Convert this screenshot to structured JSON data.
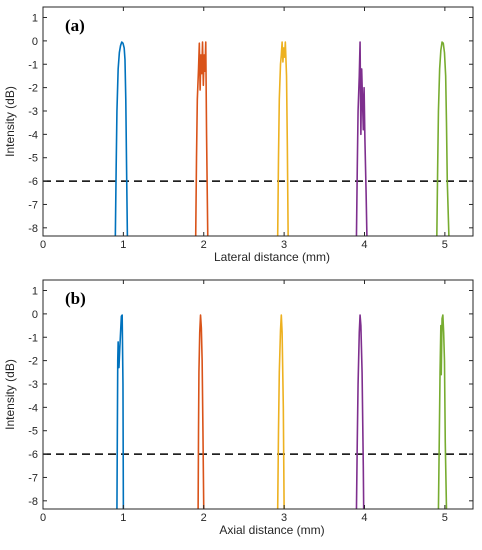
{
  "chart_data": [
    {
      "type": "line",
      "panel_label": "(a)",
      "xlabel": "Lateral distance (mm)",
      "ylabel": "Intensity (dB)",
      "xlim": [
        0,
        5.35
      ],
      "ylim": [
        -8.35,
        1.45
      ],
      "xticks": [
        0,
        1,
        2,
        3,
        4,
        5
      ],
      "yticks": [
        1,
        0,
        -1,
        -2,
        -3,
        -4,
        -5,
        -6,
        -7,
        -8
      ],
      "reference_line": {
        "y": -6,
        "style": "dashed",
        "color": "#000000"
      },
      "series": [
        {
          "color": "#0072BD",
          "x": [
            0.9,
            0.91,
            0.92,
            0.935,
            0.95,
            0.965,
            0.98,
            0.995,
            1.01,
            1.02,
            1.03,
            1.04,
            1.05
          ],
          "y": [
            -8.35,
            -5.5,
            -3.0,
            -1.2,
            -0.5,
            -0.2,
            -0.05,
            -0.1,
            -0.3,
            -0.8,
            -2.5,
            -5.5,
            -8.35
          ]
        },
        {
          "color": "#D95319",
          "x": [
            1.9,
            1.91,
            1.92,
            1.935,
            1.945,
            1.955,
            1.965,
            1.975,
            1.985,
            1.995,
            2.005,
            2.015,
            2.025,
            2.035,
            2.05
          ],
          "y": [
            -8.35,
            -5.0,
            -2.5,
            -1.2,
            -0.1,
            -2.1,
            -0.6,
            -1.4,
            -0.05,
            -1.9,
            -0.6,
            -1.3,
            -0.05,
            -4.0,
            -8.35
          ]
        },
        {
          "color": "#EDB120",
          "x": [
            2.92,
            2.93,
            2.94,
            2.955,
            2.965,
            2.975,
            2.985,
            2.995,
            3.005,
            3.015,
            3.03,
            3.04,
            3.05
          ],
          "y": [
            -8.35,
            -5.0,
            -2.5,
            -1.0,
            -0.6,
            -0.05,
            -0.9,
            -0.3,
            -0.7,
            -0.05,
            -1.5,
            -4.5,
            -8.35
          ]
        },
        {
          "color": "#7E2F8E",
          "x": [
            3.9,
            3.91,
            3.92,
            3.935,
            3.945,
            3.955,
            3.965,
            3.975,
            3.985,
            3.995,
            4.005,
            4.02,
            4.03
          ],
          "y": [
            -8.35,
            -5.5,
            -3.0,
            -1.5,
            -0.05,
            -4.0,
            -1.2,
            -2.5,
            -3.8,
            -2.0,
            -4.2,
            -6.5,
            -8.35
          ]
        },
        {
          "color": "#77AC30",
          "x": [
            4.9,
            4.91,
            4.92,
            4.935,
            4.95,
            4.965,
            4.98,
            4.995,
            5.01,
            5.02,
            5.03,
            5.05
          ],
          "y": [
            -8.35,
            -5.5,
            -3.0,
            -1.2,
            -0.4,
            -0.05,
            -0.1,
            -0.5,
            -1.5,
            -3.5,
            -6.0,
            -8.35
          ]
        }
      ]
    },
    {
      "type": "line",
      "panel_label": "(b)",
      "xlabel": "Axial distance (mm)",
      "ylabel": "Intensity (dB)",
      "xlim": [
        0,
        5.35
      ],
      "ylim": [
        -8.35,
        1.45
      ],
      "xticks": [
        0,
        1,
        2,
        3,
        4,
        5
      ],
      "yticks": [
        1,
        0,
        -1,
        -2,
        -3,
        -4,
        -5,
        -6,
        -7,
        -8
      ],
      "reference_line": {
        "y": -6,
        "style": "dashed",
        "color": "#000000"
      },
      "series": [
        {
          "color": "#0072BD",
          "x": [
            0.92,
            0.925,
            0.93,
            0.935,
            0.945,
            0.955,
            0.965,
            0.975,
            0.985,
            0.995,
            1.0
          ],
          "y": [
            -8.35,
            -5.0,
            -2.0,
            -1.2,
            -2.3,
            -1.5,
            -0.8,
            -0.1,
            -0.05,
            -3.0,
            -8.35
          ]
        },
        {
          "color": "#D95319",
          "x": [
            1.93,
            1.935,
            1.94,
            1.95,
            1.96,
            1.97,
            1.98,
            1.99,
            2.0
          ],
          "y": [
            -8.35,
            -5.0,
            -2.5,
            -0.8,
            -0.05,
            -0.6,
            -2.0,
            -5.0,
            -8.35
          ]
        },
        {
          "color": "#EDB120",
          "x": [
            2.92,
            2.93,
            2.94,
            2.955,
            2.965,
            2.975,
            2.99,
            3.0
          ],
          "y": [
            -8.35,
            -5.0,
            -2.5,
            -0.7,
            -0.05,
            -0.8,
            -4.0,
            -8.35
          ]
        },
        {
          "color": "#7E2F8E",
          "x": [
            3.9,
            3.91,
            3.92,
            3.935,
            3.945,
            3.955,
            3.97,
            3.985,
            3.99
          ],
          "y": [
            -8.35,
            -5.5,
            -3.0,
            -0.8,
            -0.05,
            -0.5,
            -2.5,
            -6.5,
            -8.35
          ]
        },
        {
          "color": "#77AC30",
          "x": [
            4.92,
            4.93,
            4.94,
            4.95,
            4.955,
            4.965,
            4.975,
            4.985,
            4.995,
            5.005,
            5.02
          ],
          "y": [
            -8.35,
            -5.5,
            -2.5,
            -0.5,
            -2.6,
            -0.2,
            -0.05,
            -0.8,
            -2.0,
            -5.5,
            -8.35
          ]
        }
      ]
    }
  ]
}
